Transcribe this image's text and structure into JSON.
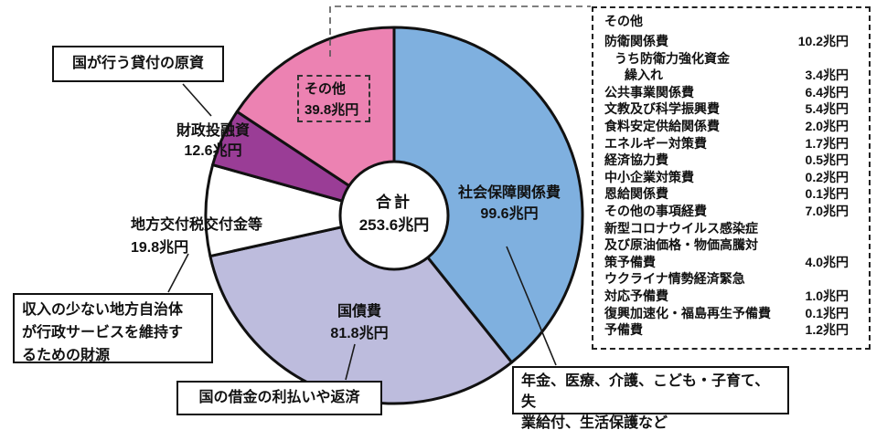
{
  "chart_data": {
    "type": "pie",
    "title": "",
    "unit": "兆円",
    "total": 253.6,
    "direction": "clockwise",
    "start_angle_deg": 0,
    "donut": true,
    "outline_color": "#111111",
    "center_label": {
      "title": "合計",
      "value": "253.6兆円"
    },
    "slices": [
      {
        "id": "social-security",
        "name": "社会保障関係費",
        "value": 99.6,
        "value_label": "99.6兆円",
        "color": "#7fb0df"
      },
      {
        "id": "national-debt-service",
        "name": "国債費",
        "value": 81.8,
        "value_label": "81.8兆円",
        "color": "#bdbcdd"
      },
      {
        "id": "local-allocation-tax",
        "name": "地方交付税交付金等",
        "value": 19.8,
        "value_label": "19.8兆円",
        "color": "#ffffff"
      },
      {
        "id": "fiscal-investment-loan",
        "name": "財政投融資",
        "value": 12.6,
        "value_label": "12.6兆円",
        "color": "#9a3d96"
      },
      {
        "id": "others",
        "name": "その他",
        "value": 39.8,
        "value_label": "39.8兆円",
        "color": "#ec82b2"
      }
    ]
  },
  "callouts": {
    "loan_source": {
      "text": "国が行う貸付の原資",
      "target": "財政投融資"
    },
    "local_gov_funding": {
      "lines": [
        "収入の少ない地方自治体",
        "が行政サービスを維持す",
        "るための財源"
      ],
      "target": "地方交付税交付金等"
    },
    "debt_repayment": {
      "text": "国の借金の利払いや返済",
      "target": "国債費"
    },
    "social_security_detail": {
      "lines": [
        "年金、医療、介護、こども・子育て、失",
        "業給付、生活保護など"
      ],
      "target": "社会保障関係費"
    }
  },
  "breakdown_panel": {
    "title": "その他",
    "unit": "兆円",
    "items": [
      {
        "label": "防衛関係費",
        "value": "10.2兆円",
        "indent": 0
      },
      {
        "label": "うち防衛力強化資金",
        "value": "",
        "indent": 1
      },
      {
        "label": "繰入れ",
        "value": "3.4兆円",
        "indent": 2
      },
      {
        "label": "公共事業関係費",
        "value": "6.4兆円",
        "indent": 0
      },
      {
        "label": "文教及び科学振興費",
        "value": "5.4兆円",
        "indent": 0
      },
      {
        "label": "食料安定供給関係費",
        "value": "2.0兆円",
        "indent": 0
      },
      {
        "label": "エネルギー対策費",
        "value": "1.7兆円",
        "indent": 0
      },
      {
        "label": "経済協力費",
        "value": "0.5兆円",
        "indent": 0
      },
      {
        "label": "中小企業対策費",
        "value": "0.2兆円",
        "indent": 0
      },
      {
        "label": "恩給関係費",
        "value": "0.1兆円",
        "indent": 0
      },
      {
        "label": "その他の事項経費",
        "value": "7.0兆円",
        "indent": 0
      },
      {
        "label": "新型コロナウイルス感染症",
        "value": "",
        "indent": 0
      },
      {
        "label": "及び原油価格・物価高騰対",
        "value": "",
        "indent": 0
      },
      {
        "label": "策予備費",
        "value": "4.0兆円",
        "indent": 0
      },
      {
        "label": "ウクライナ情勢経済緊急",
        "value": "",
        "indent": 0
      },
      {
        "label": "対応予備費",
        "value": "1.0兆円",
        "indent": 0
      },
      {
        "label": "復興加速化・福島再生予備費",
        "value": "0.1兆円",
        "indent": 0
      },
      {
        "label": "予備費",
        "value": "1.2兆円",
        "indent": 0
      }
    ]
  }
}
